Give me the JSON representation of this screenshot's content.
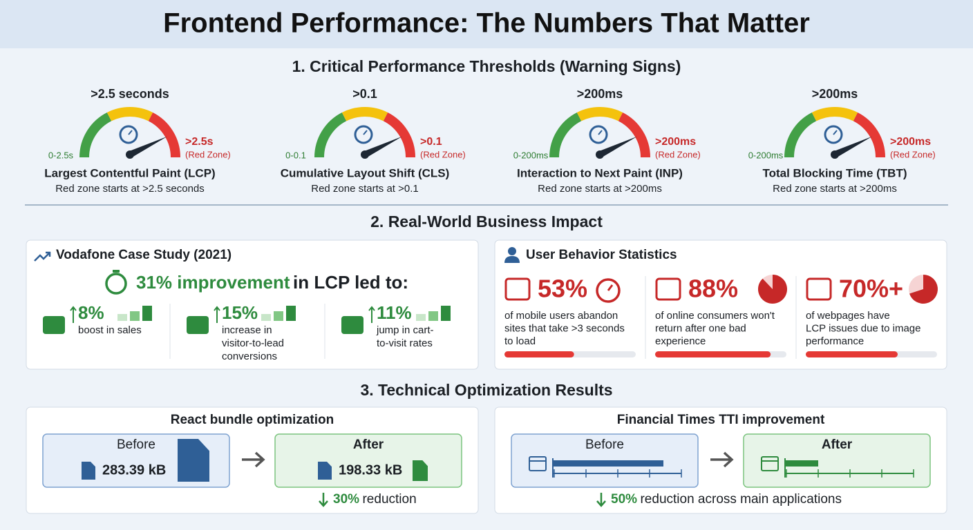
{
  "header": {
    "title": "Frontend Performance: The Numbers That Matter"
  },
  "thresholds": {
    "heading": "1. Critical Performance Thresholds (Warning Signs)",
    "gauges": [
      {
        "threshold": ">2.5 seconds",
        "low": "0-2.5s",
        "high": ">2.5s",
        "zone": "(Red Zone)",
        "name": "Largest Contentful Paint (LCP)",
        "note": "Red zone starts at >2.5 seconds"
      },
      {
        "threshold": ">0.1",
        "low": "0-0.1",
        "high": ">0.1",
        "zone": "(Red Zone)",
        "name": "Cumulative Layout Shift (CLS)",
        "note": "Red zone starts at >0.1"
      },
      {
        "threshold": ">200ms",
        "low": "0-200ms",
        "high": ">200ms",
        "zone": "(Red Zone)",
        "name": "Interaction to Next Paint (INP)",
        "note": "Red zone starts at >200ms"
      },
      {
        "threshold": ">200ms",
        "low": "0-200ms",
        "high": ">200ms",
        "zone": "(Red Zone)",
        "name": "Total Blocking Time (TBT)",
        "note": "Red zone starts at >200ms"
      }
    ]
  },
  "impact": {
    "heading": "2. Real-World Business Impact",
    "vodafone": {
      "title": "Vodafone Case Study (2021)",
      "headline_highlight": "31% improvement",
      "headline_rest": "in LCP led to:",
      "stats": [
        {
          "value": "8%",
          "lines": [
            "boost in sales"
          ]
        },
        {
          "value": "15%",
          "lines": [
            "increase in",
            "visitor-to-lead",
            "conversions"
          ]
        },
        {
          "value": "11%",
          "lines": [
            "jump in cart-",
            "to-visit rates"
          ]
        }
      ]
    },
    "users": {
      "title": "User Behavior Statistics",
      "stats": [
        {
          "value": 53,
          "label": "53%",
          "lines": [
            "of mobile users abandon",
            "sites that take >3 seconds",
            "to load"
          ]
        },
        {
          "value": 88,
          "label": "88%",
          "lines": [
            "of online consumers won't",
            "return after one bad",
            "experience"
          ]
        },
        {
          "value": 70,
          "label": "70%+",
          "lines": [
            "of webpages have",
            "LCP issues due to image",
            "performance"
          ]
        }
      ]
    }
  },
  "optimization": {
    "heading": "3. Technical Optimization Results",
    "react": {
      "title": "React bundle optimization",
      "before": "Before",
      "before_size": "283.39 kB",
      "after": "After",
      "after_size": "198.33 kB",
      "reduction": "30%",
      "reduction_text": "reduction"
    },
    "ft": {
      "title": "Financial Times TTI improvement",
      "before": "Before",
      "after": "After",
      "reduction": "50%",
      "reduction_text": "reduction across main applications"
    }
  }
}
